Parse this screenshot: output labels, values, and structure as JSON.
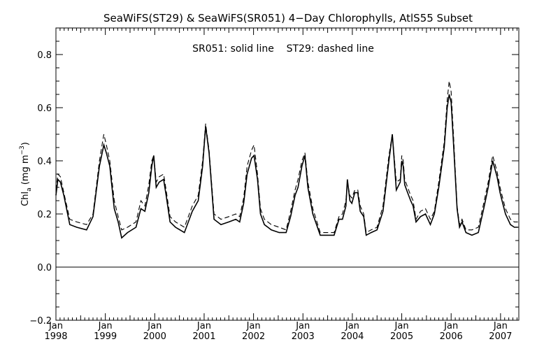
{
  "chart_data": {
    "type": "line",
    "title": "SeaWiFS(ST29) & SeaWiFS(SR051) 4−Day Chlorophylls, AtlS55 Subset",
    "annotation": "SR051: solid line    ST29: dashed line",
    "ylabel_main": "Chl",
    "ylabel_sub": "a",
    "ylabel_unit_pre": " (mg m",
    "ylabel_unit_sup": "−3",
    "ylabel_unit_post": ")",
    "xlabel": "",
    "ylim": [
      -0.2,
      0.9
    ],
    "xlim": [
      1998.0,
      2007.37
    ],
    "y_ticks": [
      "−0.2",
      "0.0",
      "0.2",
      "0.4",
      "0.6",
      "0.8"
    ],
    "y_tick_values": [
      -0.2,
      0.0,
      0.2,
      0.4,
      0.6,
      0.8
    ],
    "x_ticks": [
      {
        "month": "Jan",
        "year": "1998",
        "value": 1998
      },
      {
        "month": "Jan",
        "year": "1999",
        "value": 1999
      },
      {
        "month": "Jan",
        "year": "2000",
        "value": 2000
      },
      {
        "month": "Jan",
        "year": "2001",
        "value": 2001
      },
      {
        "month": "Jan",
        "year": "2002",
        "value": 2002
      },
      {
        "month": "Jan",
        "year": "2003",
        "value": 2003
      },
      {
        "month": "Jan",
        "year": "2004",
        "value": 2004
      },
      {
        "month": "Jan",
        "year": "2005",
        "value": 2005
      },
      {
        "month": "Jan",
        "year": "2006",
        "value": 2006
      },
      {
        "month": "Jan",
        "year": "2007",
        "value": 2007
      }
    ],
    "zero_line": 0.0,
    "grid": false,
    "series": [
      {
        "name": "SR051",
        "style": "solid",
        "color": "#000000",
        "x": [
          1998.0,
          1998.04,
          1998.09,
          1998.16,
          1998.28,
          1998.42,
          1998.62,
          1998.75,
          1998.88,
          1998.97,
          1999.02,
          1999.09,
          1999.18,
          1999.26,
          1999.33,
          1999.45,
          1999.62,
          1999.72,
          1999.8,
          1999.88,
          1999.94,
          1999.98,
          2000.03,
          2000.09,
          2000.18,
          2000.23,
          2000.31,
          2000.42,
          2000.6,
          2000.76,
          2000.88,
          2000.97,
          2001.03,
          2001.1,
          2001.2,
          2001.34,
          2001.5,
          2001.64,
          2001.72,
          2001.8,
          2001.87,
          2001.96,
          2002.01,
          2002.08,
          2002.14,
          2002.22,
          2002.36,
          2002.52,
          2002.66,
          2002.75,
          2002.84,
          2002.9,
          2002.98,
          2003.04,
          2003.1,
          2003.2,
          2003.35,
          2003.5,
          2003.63,
          2003.73,
          2003.8,
          2003.87,
          2003.9,
          2003.95,
          2003.99,
          2004.05,
          2004.11,
          2004.16,
          2004.23,
          2004.28,
          2004.38,
          2004.5,
          2004.62,
          2004.74,
          2004.81,
          2004.89,
          2004.97,
          2005.0,
          2005.03,
          2005.06,
          2005.12,
          2005.18,
          2005.23,
          2005.29,
          2005.38,
          2005.48,
          2005.58,
          2005.66,
          2005.75,
          2005.86,
          2005.92,
          2005.96,
          2006.0,
          2006.05,
          2006.12,
          2006.17,
          2006.22,
          2006.3,
          2006.42,
          2006.55,
          2006.66,
          2006.75,
          2006.84,
          2006.93,
          2006.99,
          2007.03,
          2007.1,
          2007.2,
          2007.28,
          2007.35
        ],
        "y": [
          0.27,
          0.33,
          0.32,
          0.27,
          0.16,
          0.15,
          0.14,
          0.19,
          0.38,
          0.46,
          0.43,
          0.38,
          0.22,
          0.17,
          0.11,
          0.13,
          0.15,
          0.22,
          0.21,
          0.28,
          0.38,
          0.42,
          0.3,
          0.32,
          0.33,
          0.27,
          0.17,
          0.15,
          0.13,
          0.21,
          0.25,
          0.38,
          0.53,
          0.43,
          0.18,
          0.16,
          0.17,
          0.18,
          0.17,
          0.24,
          0.35,
          0.41,
          0.42,
          0.33,
          0.2,
          0.16,
          0.14,
          0.13,
          0.13,
          0.19,
          0.27,
          0.3,
          0.38,
          0.42,
          0.3,
          0.2,
          0.12,
          0.12,
          0.12,
          0.18,
          0.18,
          0.23,
          0.33,
          0.25,
          0.24,
          0.28,
          0.28,
          0.21,
          0.19,
          0.12,
          0.13,
          0.14,
          0.21,
          0.4,
          0.5,
          0.29,
          0.32,
          0.4,
          0.38,
          0.31,
          0.28,
          0.25,
          0.23,
          0.17,
          0.19,
          0.2,
          0.16,
          0.2,
          0.3,
          0.45,
          0.6,
          0.65,
          0.62,
          0.46,
          0.22,
          0.15,
          0.17,
          0.13,
          0.12,
          0.13,
          0.22,
          0.3,
          0.4,
          0.34,
          0.28,
          0.25,
          0.2,
          0.16,
          0.15,
          0.15
        ]
      },
      {
        "name": "ST29",
        "style": "dashed",
        "color": "#000000",
        "x": [
          1998.0,
          1998.04,
          1998.09,
          1998.16,
          1998.28,
          1998.42,
          1998.62,
          1998.75,
          1998.88,
          1998.97,
          1999.02,
          1999.09,
          1999.18,
          1999.26,
          1999.33,
          1999.45,
          1999.62,
          1999.72,
          1999.8,
          1999.88,
          1999.94,
          1999.98,
          2000.03,
          2000.09,
          2000.18,
          2000.23,
          2000.31,
          2000.42,
          2000.6,
          2000.76,
          2000.88,
          2000.97,
          2001.03,
          2001.1,
          2001.2,
          2001.34,
          2001.5,
          2001.64,
          2001.72,
          2001.8,
          2001.87,
          2001.96,
          2002.01,
          2002.08,
          2002.14,
          2002.22,
          2002.36,
          2002.52,
          2002.66,
          2002.75,
          2002.84,
          2002.9,
          2002.98,
          2003.04,
          2003.1,
          2003.2,
          2003.35,
          2003.5,
          2003.63,
          2003.73,
          2003.8,
          2003.87,
          2003.9,
          2003.95,
          2003.99,
          2004.05,
          2004.11,
          2004.16,
          2004.23,
          2004.28,
          2004.38,
          2004.5,
          2004.62,
          2004.74,
          2004.81,
          2004.89,
          2004.97,
          2005.0,
          2005.03,
          2005.06,
          2005.12,
          2005.18,
          2005.23,
          2005.29,
          2005.38,
          2005.48,
          2005.58,
          2005.66,
          2005.75,
          2005.86,
          2005.92,
          2005.96,
          2006.0,
          2006.05,
          2006.12,
          2006.17,
          2006.22,
          2006.3,
          2006.42,
          2006.55,
          2006.66,
          2006.75,
          2006.84,
          2006.93,
          2006.99,
          2007.03,
          2007.1,
          2007.2,
          2007.28,
          2007.35
        ],
        "y": [
          0.29,
          0.35,
          0.34,
          0.28,
          0.18,
          0.17,
          0.16,
          0.2,
          0.4,
          0.5,
          0.46,
          0.4,
          0.25,
          0.19,
          0.14,
          0.15,
          0.17,
          0.25,
          0.23,
          0.31,
          0.4,
          0.42,
          0.32,
          0.34,
          0.35,
          0.29,
          0.19,
          0.17,
          0.15,
          0.23,
          0.27,
          0.4,
          0.54,
          0.44,
          0.2,
          0.18,
          0.19,
          0.2,
          0.19,
          0.26,
          0.38,
          0.44,
          0.46,
          0.35,
          0.22,
          0.18,
          0.16,
          0.15,
          0.14,
          0.21,
          0.29,
          0.33,
          0.4,
          0.43,
          0.32,
          0.22,
          0.13,
          0.13,
          0.13,
          0.19,
          0.2,
          0.25,
          0.32,
          0.27,
          0.26,
          0.29,
          0.29,
          0.23,
          0.2,
          0.13,
          0.14,
          0.15,
          0.23,
          0.42,
          0.5,
          0.32,
          0.33,
          0.42,
          0.4,
          0.33,
          0.3,
          0.27,
          0.25,
          0.18,
          0.21,
          0.22,
          0.18,
          0.21,
          0.32,
          0.47,
          0.63,
          0.7,
          0.66,
          0.49,
          0.23,
          0.16,
          0.18,
          0.14,
          0.14,
          0.15,
          0.24,
          0.32,
          0.42,
          0.36,
          0.3,
          0.27,
          0.22,
          0.18,
          0.17,
          0.17
        ]
      }
    ]
  }
}
